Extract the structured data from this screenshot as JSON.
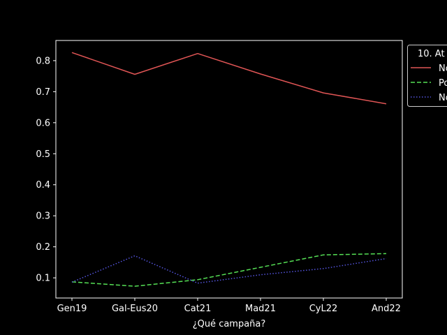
{
  "chart_data": {
    "type": "line",
    "xlabel": "¿Qué campaña?",
    "ylabel": "",
    "categories": [
      "Gen19",
      "Gal-Eus20",
      "Cat21",
      "Mad21",
      "CyL22",
      "And22"
    ],
    "ylim": [
      0.035,
      0.865
    ],
    "yticks": [
      0.1,
      0.2,
      0.3,
      0.4,
      0.5,
      0.6,
      0.7,
      0.8
    ],
    "ytick_labels": [
      "0.1",
      "0.2",
      "0.3",
      "0.4",
      "0.5",
      "0.6",
      "0.7",
      "0.8"
    ],
    "grid": false,
    "legend": {
      "title": "10. At",
      "placement": "top-right, partially outside plot"
    },
    "series": [
      {
        "name": "No",
        "color": "#e05555",
        "style": "solid",
        "values": [
          0.826,
          0.756,
          0.823,
          0.757,
          0.696,
          0.661
        ]
      },
      {
        "name": "Po",
        "color": "#55e055",
        "style": "dashed",
        "values": [
          0.087,
          0.073,
          0.094,
          0.134,
          0.174,
          0.178
        ]
      },
      {
        "name": "No",
        "color": "#5555e0",
        "style": "dotted",
        "values": [
          0.086,
          0.171,
          0.083,
          0.11,
          0.13,
          0.162
        ]
      }
    ]
  }
}
